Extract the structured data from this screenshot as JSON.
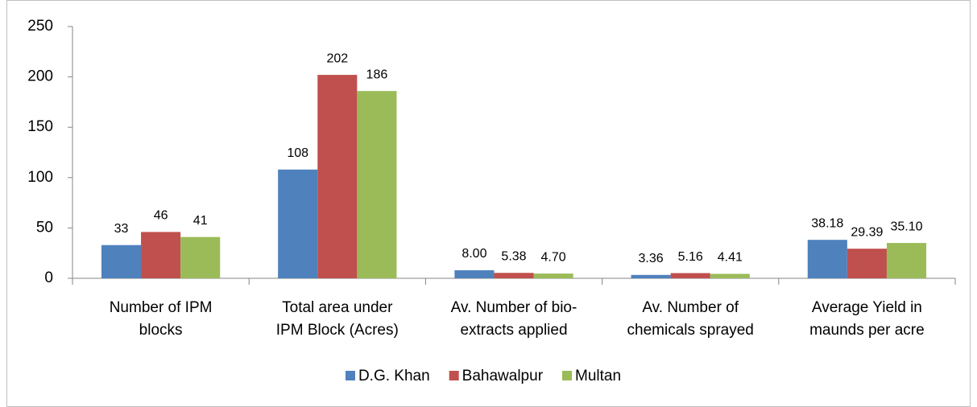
{
  "chart_data": {
    "type": "bar",
    "categories": [
      [
        "Number of IPM",
        "blocks"
      ],
      [
        "Total area under",
        "IPM Block (Acres)"
      ],
      [
        "Av. Number of bio-",
        "extracts applied"
      ],
      [
        "Av. Number of",
        "chemicals sprayed"
      ],
      [
        "Average Yield in",
        "maunds per acre"
      ]
    ],
    "series": [
      {
        "name": "D.G. Khan",
        "color": "#4f81bd",
        "values": [
          33,
          108,
          8.0,
          3.36,
          38.18
        ],
        "value_labels": [
          "33",
          "108",
          "8.00",
          "3.36",
          "38.18"
        ]
      },
      {
        "name": "Bahawalpur",
        "color": "#c0504d",
        "values": [
          46,
          202,
          5.38,
          5.16,
          29.39
        ],
        "value_labels": [
          "46",
          "202",
          "5.38",
          "5.16",
          "29.39"
        ]
      },
      {
        "name": "Multan",
        "color": "#9bbb59",
        "values": [
          41,
          186,
          4.7,
          4.41,
          35.1
        ],
        "value_labels": [
          "41",
          "186",
          "4.70",
          "4.41",
          "35.10"
        ]
      }
    ],
    "ylim": [
      0,
      250
    ],
    "yticks": [
      0,
      50,
      100,
      150,
      200,
      250
    ],
    "grid": false,
    "legend": "bottom"
  }
}
